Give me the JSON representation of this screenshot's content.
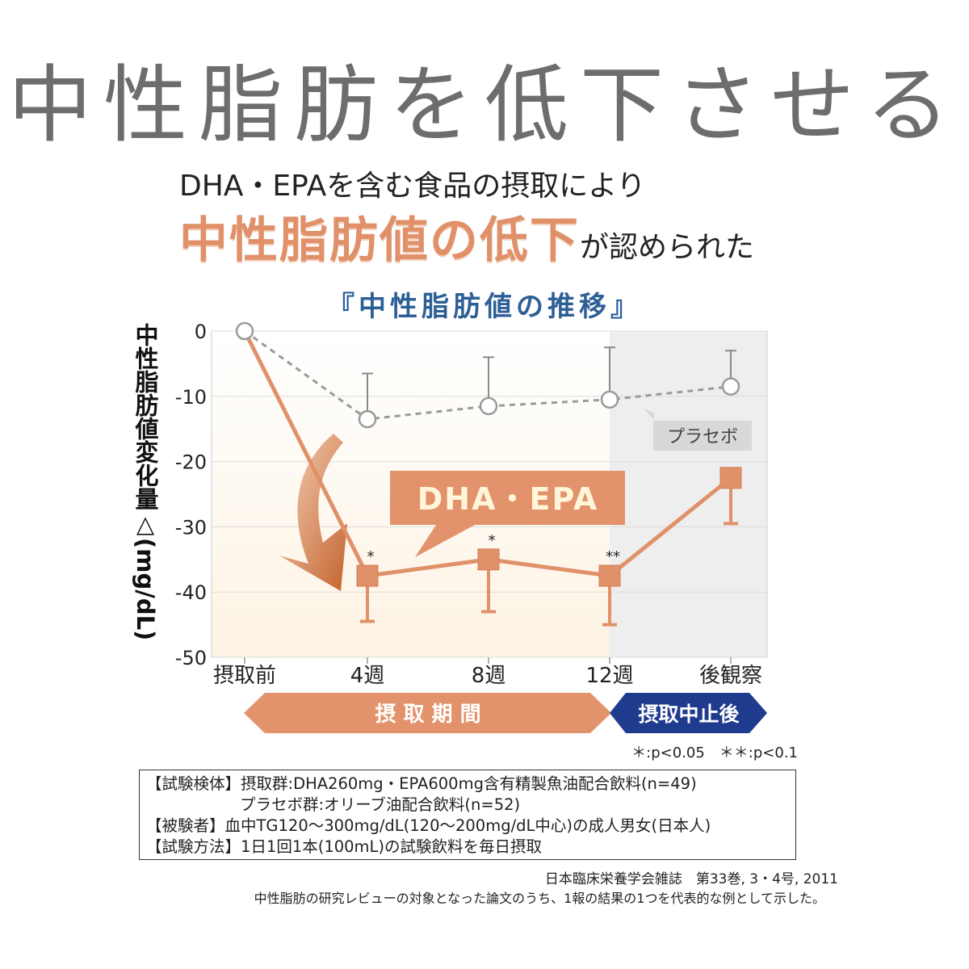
{
  "headline": "中性脂肪を低下させる",
  "subtitle_line1": "DHA・EPAを含む食品の摂取により",
  "subtitle_line2_strong": "中性脂肪値の低下",
  "subtitle_line2_tail": "が認められた",
  "chart_data": {
    "type": "line",
    "title": "『中性脂肪値の推移』",
    "ylabel": "中性脂肪値変化量△(mg/dL)",
    "xlabel": "",
    "categories": [
      "摂取前",
      "4週",
      "8週",
      "12週",
      "後観察"
    ],
    "yticks": [
      "0",
      "-10",
      "-20",
      "-30",
      "-40",
      "-50"
    ],
    "ylim": [
      -50,
      0
    ],
    "grid": true,
    "series": [
      {
        "name": "DHA・EPA",
        "marker": "square",
        "color": "#e0916a",
        "values": [
          0,
          -37.5,
          -35,
          -37.5,
          -22.5
        ],
        "error": [
          0,
          7,
          8,
          7.5,
          7
        ],
        "error_direction": "down",
        "significance": [
          "",
          "*",
          "*",
          "**",
          ""
        ]
      },
      {
        "name": "プラセボ",
        "marker": "circle",
        "color": "#999999",
        "values": [
          0,
          -13.5,
          -11.5,
          -10.5,
          -8.5
        ],
        "error": [
          0,
          7,
          7.5,
          8,
          5.5
        ],
        "error_direction": "up",
        "significance": [
          "",
          "",
          "",
          "",
          ""
        ]
      }
    ],
    "period_labels": {
      "intake": "摂 取 期 間",
      "after": "摂取中止後"
    },
    "pvalue_legend": "＊:p<0.05　＊＊:p<0.1"
  },
  "notes": [
    "【試験検体】摂取群:DHA260mg・EPA600mg含有精製魚油配合飲料(n=49)",
    "プラセボ群:オリーブ油配合飲料(n=52)",
    "【被験者】血中TG120〜300mg/dL(120〜200mg/dL中心)の成人男女(日本人)",
    "【試験方法】1日1回1本(100mL)の試験飲料を毎日摂取"
  ],
  "citation": "日本臨床栄養学会雑誌　第33巻, 3・4号, 2011",
  "footnote": "中性脂肪の研究レビューの対象となった論文のうち、1報の結果の1つを代表的な例として示した。"
}
